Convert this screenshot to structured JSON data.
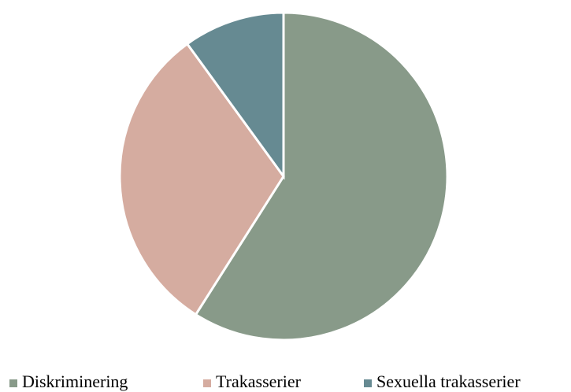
{
  "chart_data": {
    "type": "pie",
    "categories": [
      "Diskriminering",
      "Trakasserier",
      "Sexuella trakasserier"
    ],
    "values": [
      59,
      31,
      10
    ],
    "colors": [
      "#889a89",
      "#d5aca0",
      "#668a92"
    ],
    "legend": "bottom"
  }
}
